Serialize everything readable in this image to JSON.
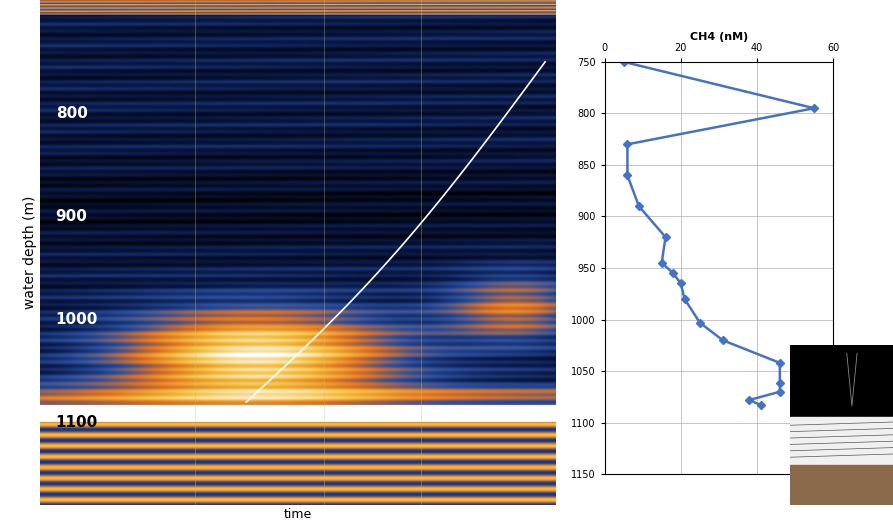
{
  "chart_data": [
    {
      "type": "image",
      "xlabel": "time",
      "ylabel": "water depth (m)",
      "ylim": [
        1180,
        690
      ],
      "depth_labels": [
        800,
        900,
        1000,
        1100
      ]
    },
    {
      "type": "line",
      "title": "CH4 (nM)",
      "x": [
        5,
        55,
        6,
        6,
        9,
        16,
        15,
        18,
        20,
        21,
        25,
        31,
        46,
        46,
        46,
        38,
        41
      ],
      "y": [
        750,
        795,
        830,
        860,
        890,
        920,
        945,
        955,
        965,
        980,
        1003,
        1020,
        1042,
        1062,
        1070,
        1078,
        1083
      ],
      "xlim": [
        0,
        60
      ],
      "xticks": [
        0,
        20,
        40,
        60
      ],
      "ylim": [
        1150,
        750
      ],
      "yticks": [
        750,
        800,
        850,
        900,
        950,
        1000,
        1050,
        1100,
        1150
      ],
      "color": "#4472c4",
      "marker": "diamond",
      "grid": true
    }
  ]
}
